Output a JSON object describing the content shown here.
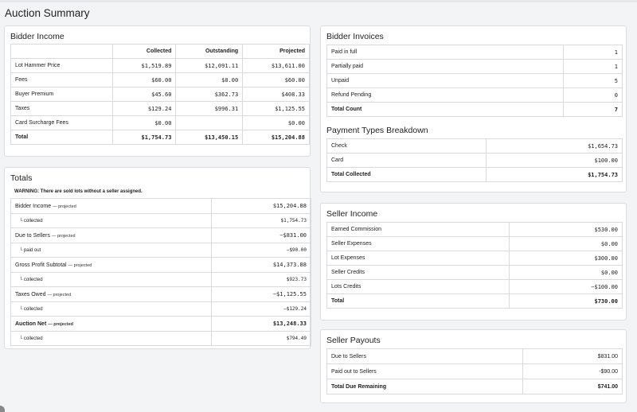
{
  "page_title": "Auction Summary",
  "bidder_income": {
    "title": "Bidder Income",
    "columns": [
      "Collected",
      "Outstanding",
      "Projected"
    ],
    "rows": [
      {
        "label": "Lot Hammer Price",
        "collected": "$1,519.89",
        "outstanding": "$12,091.11",
        "projected": "$13,611.00"
      },
      {
        "label": "Fees",
        "collected": "$60.00",
        "outstanding": "$0.00",
        "projected": "$60.00"
      },
      {
        "label": "Buyer Premium",
        "collected": "$45.60",
        "outstanding": "$362.73",
        "projected": "$408.33"
      },
      {
        "label": "Taxes",
        "collected": "$129.24",
        "outstanding": "$996.31",
        "projected": "$1,125.55"
      },
      {
        "label": "Card Surcharge Fees",
        "collected": "$0.00",
        "outstanding": "",
        "projected": "$0.00"
      },
      {
        "label": "Total",
        "collected": "$1,754.73",
        "outstanding": "$13,450.15",
        "projected": "$15,204.88"
      }
    ]
  },
  "totals": {
    "title": "Totals",
    "warning": "WARNING: There are sold lots without a seller assigned.",
    "rows": [
      {
        "label": "Bidder Income",
        "tag": "— projected",
        "value": "$15,204.88"
      },
      {
        "label": "└ collected",
        "value": "$1,754.73"
      },
      {
        "label": "Due to Sellers",
        "tag": "— projected",
        "value": "−$831.00"
      },
      {
        "label": "└ paid out",
        "value": "−$90.00"
      },
      {
        "label": "Gross Profit Subtotal",
        "tag": "— projected",
        "value": "$14,373.88"
      },
      {
        "label": "└ collected",
        "value": "$923.73"
      },
      {
        "label": "Taxes Owed",
        "tag": "— projected",
        "value": "−$1,125.55"
      },
      {
        "label": "└ collected",
        "value": "−$129.24"
      },
      {
        "label": "Auction Net",
        "tag": "— projected",
        "value": "$13,248.33"
      },
      {
        "label": "└ collected",
        "value": "$794.49"
      }
    ]
  },
  "bidder_invoices": {
    "title": "Bidder Invoices",
    "rows": [
      {
        "label": "Paid in full",
        "value": "1"
      },
      {
        "label": "Partially paid",
        "value": "1"
      },
      {
        "label": "Unpaid",
        "value": "5"
      },
      {
        "label": "Refund Pending",
        "value": "0"
      },
      {
        "label": "Total Count",
        "value": "7"
      }
    ]
  },
  "payment_types": {
    "title": "Payment Types Breakdown",
    "rows": [
      {
        "label": "Check",
        "value": "$1,654.73"
      },
      {
        "label": "Card",
        "value": "$100.00"
      },
      {
        "label": "Total Collected",
        "value": "$1,754.73"
      }
    ]
  },
  "seller_income": {
    "title": "Seller Income",
    "rows": [
      {
        "label": "Earned Commission",
        "value": "$530.00"
      },
      {
        "label": "Seller Expenses",
        "value": "$0.00"
      },
      {
        "label": "Lot Expenses",
        "value": "$300.00"
      },
      {
        "label": "Seller Credits",
        "value": "$0.00"
      },
      {
        "label": "Lots Credits",
        "value": "−$100.00"
      },
      {
        "label": "Total",
        "value": "$730.00"
      }
    ]
  },
  "seller_payouts": {
    "title": "Seller Payouts",
    "rows": [
      {
        "label": "Due to Sellers",
        "value": "$831.00"
      },
      {
        "label": "Paid out to Sellers",
        "value": "-$90.00"
      },
      {
        "label": "Total Due Remaining",
        "value": "$741.00"
      }
    ]
  }
}
